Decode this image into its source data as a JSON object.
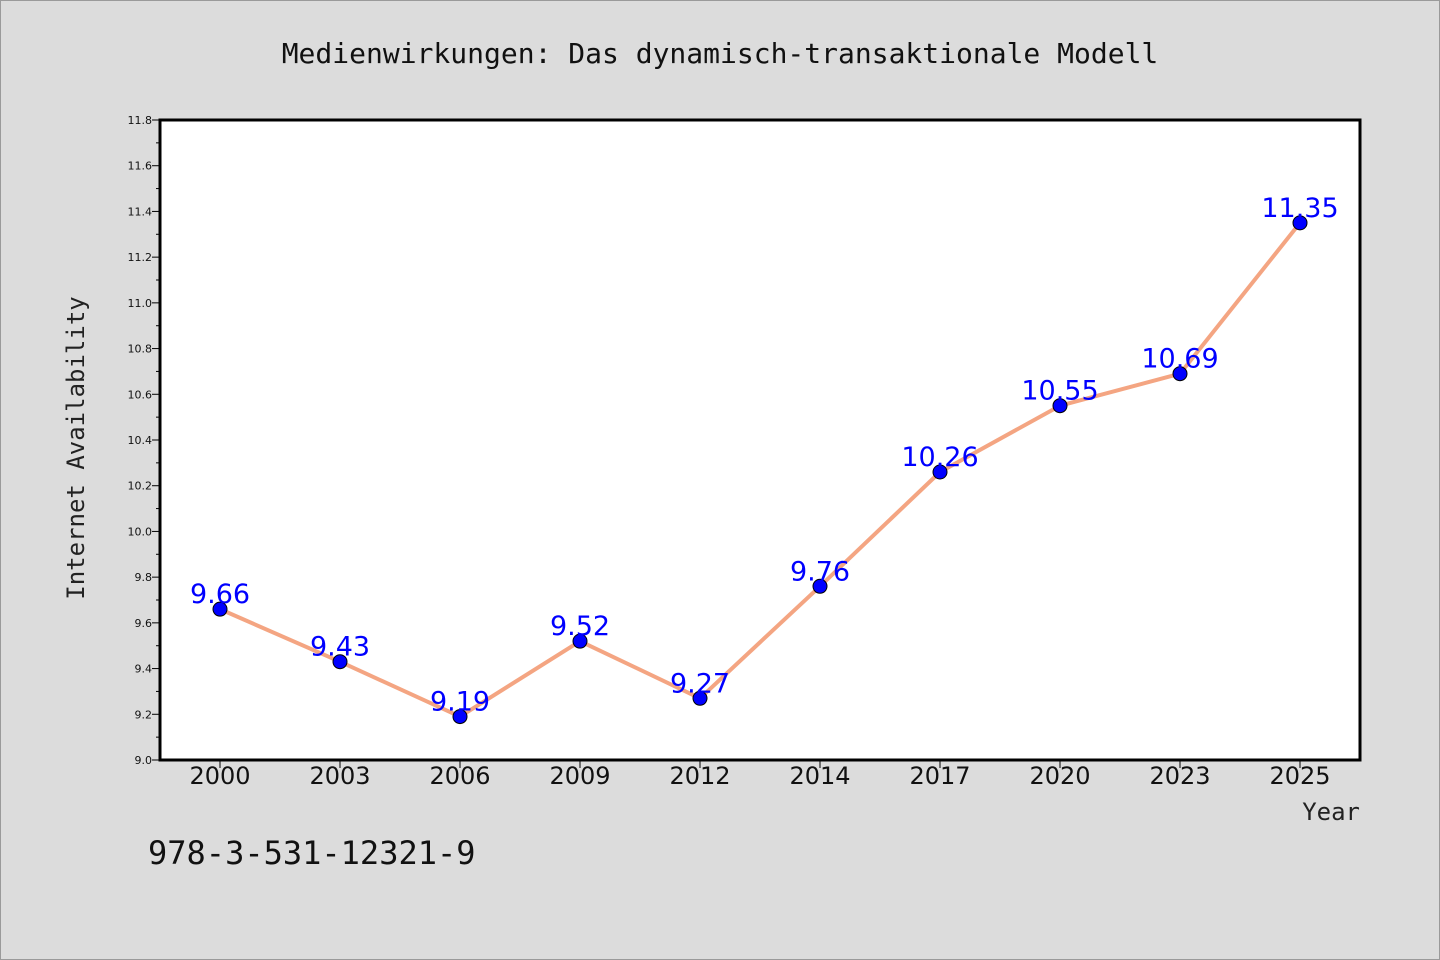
{
  "chart_data": {
    "type": "line",
    "title": "Medienwirkungen: Das dynamisch-transaktionale Modell",
    "xlabel": "Year",
    "ylabel": "Internet Availability",
    "categories": [
      "2000",
      "2003",
      "2006",
      "2009",
      "2012",
      "2014",
      "2017",
      "2020",
      "2023",
      "2025"
    ],
    "series": [
      {
        "values": [
          9.66,
          9.43,
          9.19,
          9.52,
          9.27,
          9.76,
          10.26,
          10.55,
          10.69,
          11.35
        ],
        "data_labels": [
          "9.66",
          "9.43",
          "9.19",
          "9.52",
          "9.27",
          "9.76",
          "10.26",
          "10.55",
          "10.69",
          "11.35"
        ]
      }
    ],
    "ylim": [
      9.0,
      11.8
    ],
    "yticks": [
      "9.0",
      "9.2",
      "9.4",
      "9.6",
      "9.8",
      "10.0",
      "10.2",
      "10.4",
      "10.6",
      "10.8",
      "11.0",
      "11.2",
      "11.4",
      "11.6",
      "11.8"
    ],
    "grid": false,
    "legend": "none",
    "colors": {
      "line": "#f4a582",
      "marker": "#0000ff",
      "data_label": "#0000ff",
      "background": "#dcdcdc",
      "plot_background": "#ffffff"
    }
  },
  "footer": {
    "isbn": "978-3-531-12321-9"
  }
}
